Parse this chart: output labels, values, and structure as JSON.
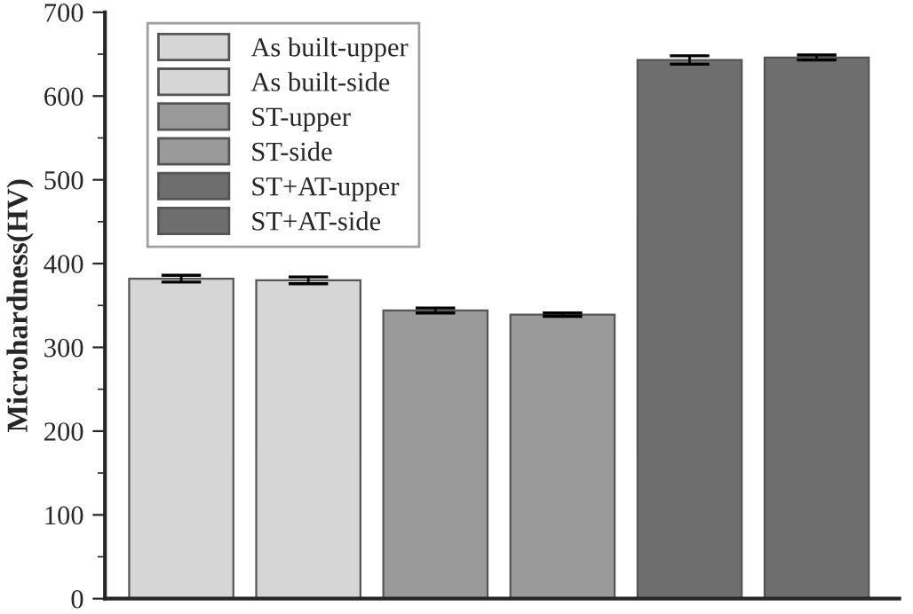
{
  "chart_data": {
    "type": "bar",
    "ylabel": "Microhardness(HV)",
    "categories": [
      null,
      null,
      null,
      null,
      null,
      null
    ],
    "series": [
      {
        "name": "As built-upper",
        "color": "#d6d6d6",
        "values": [
          382,
          null,
          null,
          null,
          null,
          null
        ],
        "errors": [
          4,
          null,
          null,
          null,
          null,
          null
        ]
      },
      {
        "name": "As built-side",
        "color": "#d6d6d6",
        "values": [
          null,
          380,
          null,
          null,
          null,
          null
        ],
        "errors": [
          null,
          4,
          null,
          null,
          null,
          null
        ]
      },
      {
        "name": "ST-upper",
        "color": "#9a9a9a",
        "values": [
          null,
          null,
          344,
          null,
          null,
          null
        ],
        "errors": [
          null,
          null,
          3,
          null,
          null,
          null
        ]
      },
      {
        "name": "ST-side",
        "color": "#9a9a9a",
        "values": [
          null,
          null,
          null,
          339,
          null,
          null
        ],
        "errors": [
          null,
          null,
          null,
          2,
          null,
          null
        ]
      },
      {
        "name": "ST+AT-upper",
        "color": "#6e6e6e",
        "values": [
          null,
          null,
          null,
          null,
          643,
          null
        ],
        "errors": [
          null,
          null,
          null,
          null,
          5,
          null
        ]
      },
      {
        "name": "ST+AT-side",
        "color": "#6e6e6e",
        "values": [
          null,
          null,
          null,
          null,
          null,
          646
        ],
        "errors": [
          null,
          null,
          null,
          null,
          null,
          3
        ]
      }
    ],
    "ylim": [
      0,
      700
    ],
    "yticks": [
      0,
      100,
      200,
      300,
      400,
      500,
      600,
      700
    ],
    "tick_labels": "y",
    "legend": "top left",
    "grid": false
  }
}
